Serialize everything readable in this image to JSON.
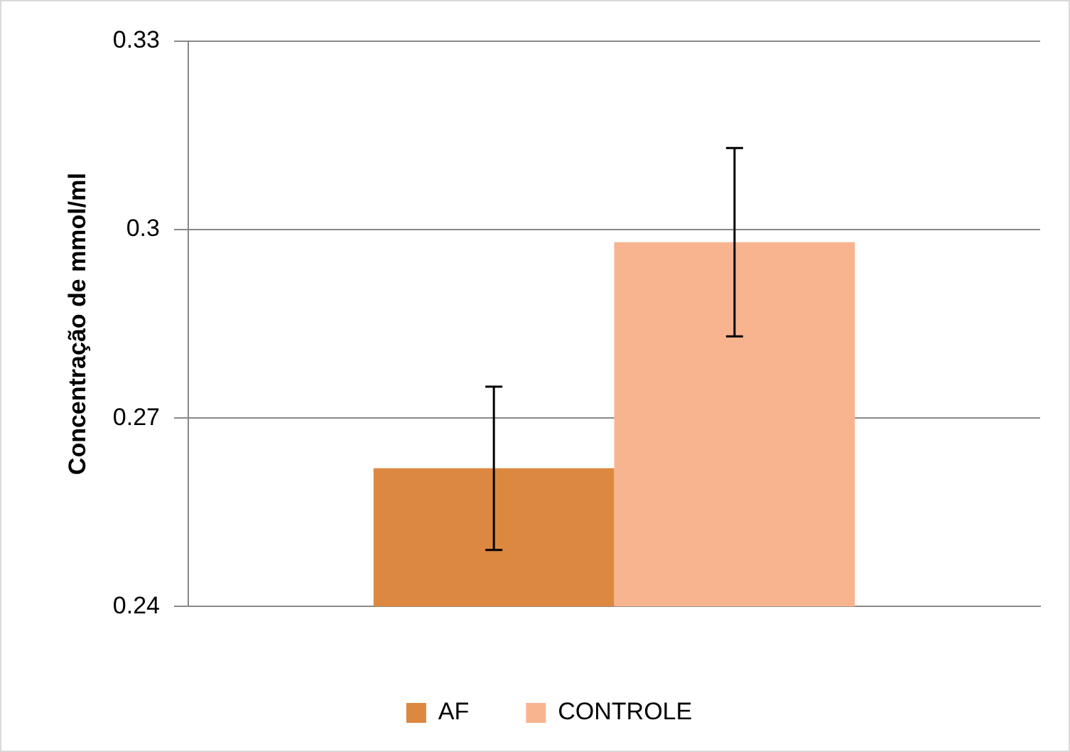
{
  "chart_data": {
    "type": "bar",
    "ylabel": "Concentração de mmol/ml",
    "categories": [
      null
    ],
    "series": [
      {
        "name": "AF",
        "color": "#dd8840",
        "values": [
          0.262
        ],
        "errors": [
          [
            0.249,
            0.275
          ]
        ]
      },
      {
        "name": "CONTROLE",
        "color": "#f8b48f",
        "values": [
          0.298
        ],
        "errors": [
          [
            0.283,
            0.313
          ]
        ]
      }
    ],
    "ylim": [
      0.24,
      0.33
    ],
    "yticks": [
      0.24,
      0.27,
      0.3,
      0.33
    ],
    "grid": "y",
    "legend": "bottom"
  }
}
